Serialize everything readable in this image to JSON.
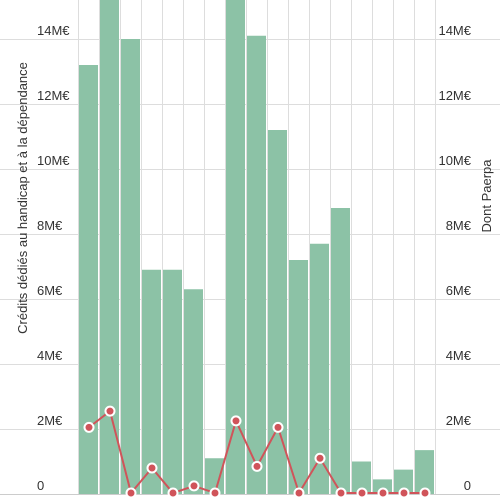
{
  "chart_data": {
    "type": "bar",
    "title": "",
    "ylabel_left": "Crédits dédiés au handicap et à la dépendance",
    "ylabel_right": "Dont Paerpa",
    "ylim_left": [
      0,
      15000000
    ],
    "ylim_right": [
      0,
      15000000
    ],
    "left_tick_values": [
      0,
      2000000,
      4000000,
      6000000,
      8000000,
      10000000,
      12000000,
      14000000
    ],
    "left_tick_labels": [
      "0",
      "2M€",
      "4M€",
      "6M€",
      "8M€",
      "10M€",
      "12M€",
      "14M€"
    ],
    "right_tick_values": [
      0,
      2000000,
      4000000,
      6000000,
      8000000,
      10000000,
      12000000,
      14000000
    ],
    "right_tick_labels": [
      "0",
      "2M€",
      "4M€",
      "6M€",
      "8M€",
      "10M€",
      "12M€",
      "14M€"
    ],
    "grid": true,
    "series": [
      {
        "kind": "bar",
        "color": "#8cc2a6",
        "values": [
          13200000,
          15200000,
          14000000,
          6900000,
          6900000,
          6300000,
          1100000,
          15200000,
          14100000,
          11200000,
          7200000,
          7700000,
          8800000,
          1000000,
          450000,
          750000,
          1350000
        ]
      },
      {
        "kind": "line",
        "color": "#d0545a",
        "values": [
          2050000,
          2550000,
          30000,
          800000,
          30000,
          250000,
          30000,
          2250000,
          850000,
          2050000,
          30000,
          1100000,
          30000,
          30000,
          30000,
          30000,
          30000
        ]
      }
    ]
  }
}
